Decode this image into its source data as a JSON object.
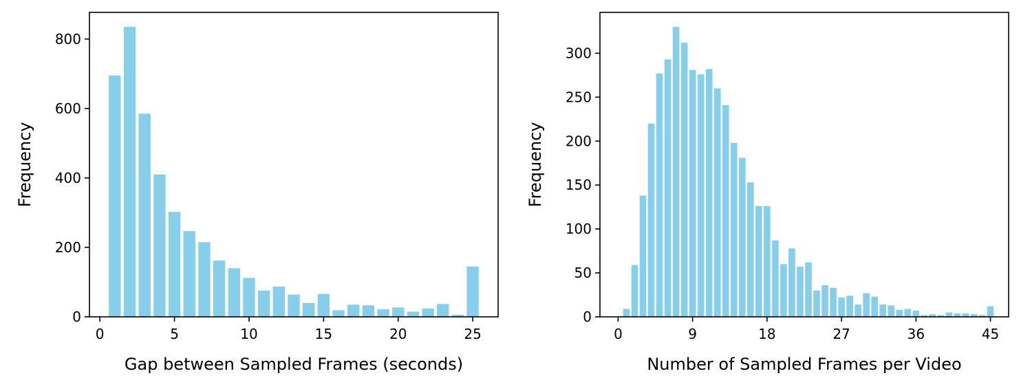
{
  "chart_data": [
    {
      "type": "bar",
      "xlabel": "Gap between Sampled Frames (seconds)",
      "ylabel": "Frequency",
      "bar_color": "#87CEEB",
      "x": [
        1,
        2,
        3,
        4,
        5,
        6,
        7,
        8,
        9,
        10,
        11,
        12,
        13,
        14,
        15,
        16,
        17,
        18,
        19,
        20,
        21,
        22,
        23,
        24,
        25
      ],
      "values": [
        695,
        835,
        585,
        410,
        302,
        247,
        215,
        162,
        140,
        112,
        76,
        87,
        64,
        40,
        66,
        19,
        35,
        33,
        22,
        27,
        15,
        24,
        37,
        6,
        145
      ],
      "xlim": [
        -0.7,
        26.7
      ],
      "ylim": [
        0,
        876.75
      ],
      "xticks": [
        0,
        5,
        10,
        15,
        20,
        25
      ],
      "yticks": [
        0,
        200,
        400,
        600,
        800
      ],
      "grid": false
    },
    {
      "type": "bar",
      "xlabel": "Number of Sampled Frames per Video",
      "ylabel": "Frequency",
      "bar_color": "#87CEEB",
      "x": [
        1,
        2,
        3,
        4,
        5,
        6,
        7,
        8,
        9,
        10,
        11,
        12,
        13,
        14,
        15,
        16,
        17,
        18,
        19,
        20,
        21,
        22,
        23,
        24,
        25,
        26,
        27,
        28,
        29,
        30,
        31,
        32,
        33,
        34,
        35,
        36,
        37,
        38,
        39,
        40,
        41,
        42,
        43,
        44,
        45
      ],
      "values": [
        9,
        59,
        138,
        220,
        277,
        293,
        330,
        312,
        281,
        276,
        282,
        260,
        241,
        198,
        181,
        153,
        126,
        126,
        87,
        60,
        78,
        57,
        62,
        30,
        36,
        33,
        22,
        24,
        14,
        27,
        23,
        14,
        13,
        8,
        9,
        7,
        2,
        3,
        2,
        5,
        4,
        4,
        3,
        2,
        12
      ],
      "xlim": [
        -2.2,
        47.2
      ],
      "ylim": [
        0,
        346.5
      ],
      "xticks": [
        0,
        9,
        18,
        27,
        36,
        45
      ],
      "yticks": [
        0,
        50,
        100,
        150,
        200,
        250,
        300
      ],
      "grid": false
    }
  ]
}
